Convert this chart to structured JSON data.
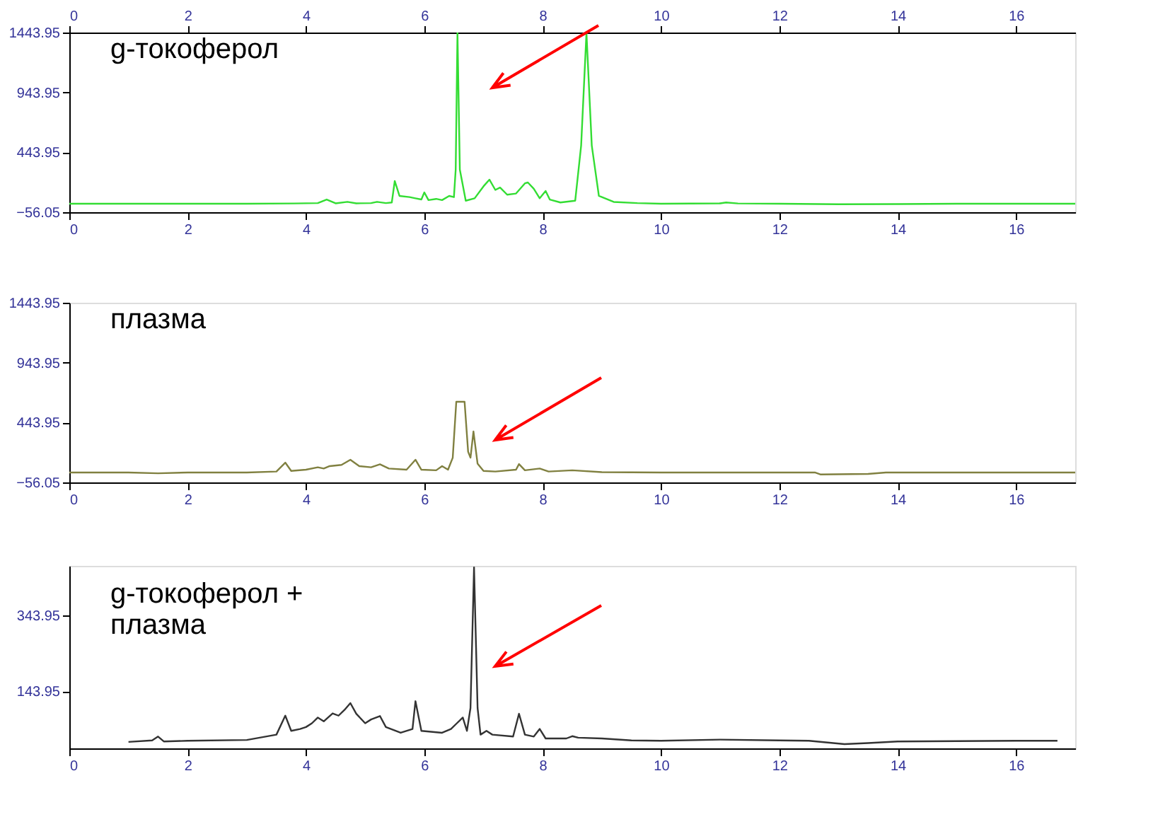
{
  "chart_data": [
    {
      "type": "line",
      "annotations": [
        "g-токоферол"
      ],
      "xlim": [
        0,
        17
      ],
      "xticks": [
        0,
        2,
        4,
        6,
        8,
        10,
        12,
        14,
        16
      ],
      "x2lim": [
        0,
        17
      ],
      "x2ticks": [
        0,
        2,
        4,
        6,
        8,
        10,
        12,
        14,
        16
      ],
      "ylim": [
        -56.05,
        1443.95
      ],
      "yticks": [
        -56.05,
        443.95,
        943.95,
        1443.95
      ],
      "series": [
        {
          "color": "#33dd33",
          "x": [
            0,
            1,
            2,
            3,
            3.8,
            4.2,
            4.35,
            4.5,
            4.7,
            4.85,
            5.1,
            5.2,
            5.35,
            5.45,
            5.5,
            5.58,
            5.75,
            5.85,
            5.95,
            6.0,
            6.07,
            6.2,
            6.3,
            6.42,
            6.5,
            6.53,
            6.56,
            6.6,
            6.7,
            6.85,
            7.0,
            7.1,
            7.2,
            7.28,
            7.4,
            7.55,
            7.7,
            7.75,
            7.85,
            7.95,
            8.05,
            8.12,
            8.3,
            8.55,
            8.65,
            8.74,
            8.83,
            8.95,
            9.2,
            9.6,
            10,
            11,
            11.1,
            11.3,
            12,
            13,
            14,
            15,
            16,
            17
          ],
          "values": [
            15,
            15,
            15,
            15,
            17,
            20,
            50,
            18,
            30,
            18,
            20,
            30,
            20,
            25,
            204,
            80,
            70,
            60,
            50,
            109,
            45,
            55,
            45,
            80,
            70,
            300,
            1443,
            300,
            40,
            60,
            160,
            216,
            130,
            150,
            90,
            100,
            185,
            192,
            140,
            60,
            121,
            50,
            25,
            40,
            500,
            1440,
            500,
            80,
            30,
            20,
            15,
            18,
            25,
            17,
            15,
            10,
            12,
            15,
            15,
            15
          ]
        }
      ]
    },
    {
      "type": "line",
      "annotations": [
        "плазма"
      ],
      "xlim": [
        0,
        17
      ],
      "xticks": [
        0,
        2,
        4,
        6,
        8,
        10,
        12,
        14,
        16
      ],
      "ylim": [
        -56.05,
        1443.95
      ],
      "yticks": [
        -56.05,
        443.95,
        943.95,
        1443.95
      ],
      "series": [
        {
          "color": "#808040",
          "x": [
            0,
            1,
            1.5,
            2,
            3,
            3.5,
            3.65,
            3.75,
            4.0,
            4.2,
            4.3,
            4.4,
            4.6,
            4.75,
            4.9,
            5.1,
            5.25,
            5.4,
            5.7,
            5.85,
            5.95,
            6.2,
            6.3,
            6.4,
            6.48,
            6.54,
            6.68,
            6.74,
            6.78,
            6.83,
            6.9,
            7.0,
            7.2,
            7.55,
            7.6,
            7.7,
            7.95,
            8.1,
            8.5,
            9,
            10,
            11,
            12,
            12.6,
            12.7,
            13.5,
            13.8,
            15,
            17
          ],
          "values": [
            27,
            27,
            20,
            27,
            27,
            35,
            109,
            40,
            50,
            70,
            60,
            80,
            90,
            133,
            80,
            70,
            95,
            60,
            50,
            133,
            50,
            45,
            80,
            50,
            150,
            617,
            617,
            200,
            150,
            369,
            100,
            40,
            35,
            50,
            97,
            45,
            60,
            35,
            45,
            30,
            27,
            27,
            27,
            27,
            10,
            15,
            27,
            27,
            27
          ]
        }
      ]
    },
    {
      "type": "line",
      "annotations": [
        "g-токоферол +\nплазма"
      ],
      "xlim": [
        0,
        17
      ],
      "xticks": [
        0,
        2,
        4,
        6,
        8,
        10,
        12,
        14,
        16
      ],
      "ylim": [
        -6.05,
        474
      ],
      "yticks": [
        143.95,
        343.95
      ],
      "series": [
        {
          "color": "#333333",
          "x": [
            1.0,
            1.4,
            1.5,
            1.6,
            2,
            3,
            3.5,
            3.65,
            3.75,
            3.9,
            4.0,
            4.1,
            4.2,
            4.3,
            4.45,
            4.55,
            4.65,
            4.75,
            4.85,
            5.0,
            5.1,
            5.25,
            5.35,
            5.6,
            5.8,
            5.85,
            5.95,
            6.3,
            6.45,
            6.55,
            6.65,
            6.72,
            6.78,
            6.84,
            6.9,
            6.95,
            7.05,
            7.15,
            7.5,
            7.6,
            7.7,
            7.85,
            7.95,
            8.05,
            8.4,
            8.5,
            8.6,
            9,
            9.5,
            10,
            11,
            12,
            12.5,
            13.1,
            13.5,
            14,
            15,
            16,
            16.7
          ],
          "values": [
            11,
            15,
            25,
            12,
            14,
            16,
            30,
            80,
            40,
            45,
            50,
            60,
            75,
            65,
            86,
            80,
            95,
            113,
            85,
            60,
            70,
            79,
            50,
            35,
            45,
            118,
            40,
            35,
            45,
            60,
            75,
            40,
            100,
            470,
            100,
            30,
            40,
            30,
            25,
            85,
            30,
            25,
            45,
            20,
            20,
            26,
            22,
            20,
            15,
            14,
            17,
            15,
            14,
            5,
            8,
            12,
            13,
            14,
            14
          ]
        }
      ]
    }
  ]
}
